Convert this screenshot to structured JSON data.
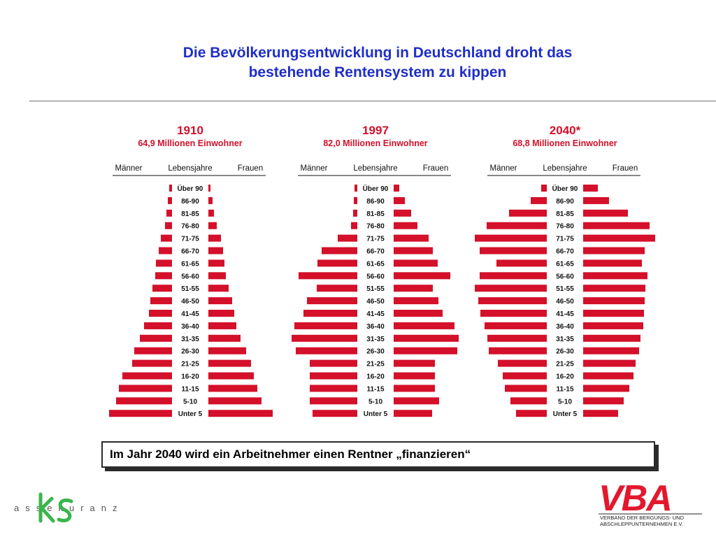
{
  "slide": {
    "title_line1": "Die Bevölkerungsentwicklung in Deutschland droht das",
    "title_line2": "bestehende Rentensystem zu kippen",
    "callout": "Im Jahr 2040 wird ein Arbeitnehmer einen Rentner „finanzieren“",
    "logo_left_text": "assekuranz",
    "logo_right_text": "VBA",
    "logo_right_caption_line1": "VERBAND DER BERGUNGS- UND",
    "logo_right_caption_line2": "ABSCHLEPPUNTERNEHMEN E.V."
  },
  "colors": {
    "title": "#1f2ec6",
    "bars": "#d4102a",
    "logo_green": "#39b54a",
    "logo_red": "#e3182d"
  },
  "chart_data": {
    "type": "bar",
    "orientation": "horizontal-mirrored",
    "column_labels": {
      "left": "Männer",
      "center": "Lebensjahre",
      "right": "Frauen"
    },
    "categories": [
      "Über 90",
      "86-90",
      "81-85",
      "76-80",
      "71-75",
      "66-70",
      "61-65",
      "56-60",
      "51-55",
      "46-50",
      "41-45",
      "36-40",
      "31-35",
      "26-30",
      "21-25",
      "16-20",
      "11-15",
      "5-10",
      "Unter 5"
    ],
    "panels": [
      {
        "year": "1910",
        "subtitle": "64,9 Millionen Einwohner",
        "series": [
          {
            "name": "Männer",
            "values": [
              4,
              6,
              8,
              10,
              16,
              19,
              23,
              24,
              28,
              31,
              33,
              40,
              46,
              54,
              57,
              71,
              76,
              80,
              90
            ]
          },
          {
            "name": "Frauen",
            "values": [
              3,
              6,
              8,
              12,
              18,
              21,
              23,
              25,
              29,
              34,
              37,
              40,
              46,
              54,
              61,
              65,
              70,
              76,
              92
            ]
          }
        ]
      },
      {
        "year": "1997",
        "subtitle": "82,0 Millionen Einwohner",
        "series": [
          {
            "name": "Männer",
            "values": [
              4,
              5,
              6,
              9,
              28,
              51,
              57,
              84,
              58,
              72,
              77,
              90,
              94,
              88,
              68,
              68,
              68,
              68,
              64
            ]
          },
          {
            "name": "Frauen",
            "values": [
              8,
              16,
              25,
              34,
              50,
              56,
              63,
              81,
              56,
              64,
              70,
              87,
              93,
              91,
              59,
              59,
              59,
              65,
              55
            ]
          }
        ]
      },
      {
        "year": "2040*",
        "subtitle": "68,8 Millionen Einwohner",
        "series": [
          {
            "name": "Männer",
            "values": [
              8,
              23,
              54,
              86,
              103,
              96,
              72,
              96,
              103,
              98,
              95,
              89,
              85,
              83,
              70,
              63,
              60,
              52,
              44
            ]
          },
          {
            "name": "Frauen",
            "values": [
              21,
              37,
              64,
              95,
              103,
              88,
              84,
              92,
              89,
              88,
              87,
              86,
              82,
              80,
              75,
              72,
              66,
              58,
              50
            ]
          }
        ]
      }
    ]
  }
}
